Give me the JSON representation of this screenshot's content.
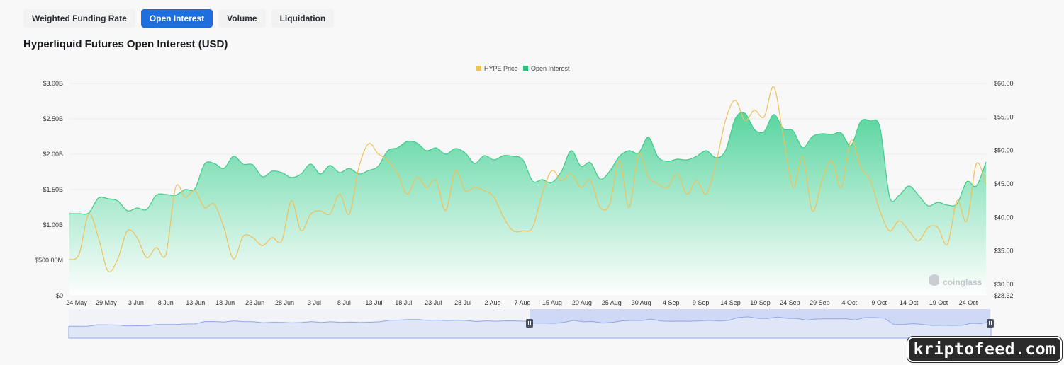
{
  "tabs": [
    {
      "label": "Weighted Funding Rate",
      "active": false
    },
    {
      "label": "Open Interest",
      "active": true
    },
    {
      "label": "Volume",
      "active": false
    },
    {
      "label": "Liquidation",
      "active": false
    }
  ],
  "chart_title": "Hyperliquid Futures Open Interest (USD)",
  "watermark": "coinglass",
  "badge": "kriptofeed.com",
  "colors": {
    "price_line": "#f0c05a",
    "oi_fill_top": "#5dd6a0",
    "oi_fill_bottom": "#ffffff",
    "oi_stroke": "#3fca89",
    "navigator_fill": "#c9d4f4",
    "navigator_line": "#8fa8e6",
    "tab_active": "#1d6fe0"
  },
  "chart_data": {
    "type": "area",
    "legend": [
      "HYPE Price",
      "Open Interest"
    ],
    "legend_position": "top-center",
    "grid": true,
    "x_tick_labels": [
      "24 May",
      "29 May",
      "3 Jun",
      "8 Jun",
      "13 Jun",
      "18 Jun",
      "23 Jun",
      "28 Jun",
      "3 Jul",
      "8 Jul",
      "13 Jul",
      "18 Jul",
      "23 Jul",
      "28 Jul",
      "2 Aug",
      "7 Aug",
      "15 Aug",
      "20 Aug",
      "25 Aug",
      "30 Aug",
      "4 Sep",
      "9 Sep",
      "14 Sep",
      "19 Sep",
      "24 Sep",
      "29 Sep",
      "4 Oct",
      "9 Oct",
      "14 Oct",
      "19 Oct",
      "24 Oct"
    ],
    "y_left": {
      "ticks": [
        "$0",
        "$500.00M",
        "$1.00B",
        "$1.50B",
        "$2.00B",
        "$2.50B",
        "$3.00B"
      ],
      "range_billions": [
        0,
        3.0
      ]
    },
    "y_right": {
      "ticks": [
        "$28.32",
        "$30.00",
        "$35.00",
        "$40.00",
        "$45.00",
        "$50.00",
        "$55.00",
        "$60.00"
      ],
      "range": [
        28.32,
        60.0
      ]
    },
    "series": [
      {
        "name": "Open Interest",
        "unit": "USD billions",
        "values": [
          1.16,
          1.16,
          1.17,
          1.38,
          1.37,
          1.34,
          1.2,
          1.24,
          1.22,
          1.42,
          1.43,
          1.42,
          1.5,
          1.51,
          1.86,
          1.87,
          1.8,
          1.97,
          1.86,
          1.85,
          1.68,
          1.76,
          1.74,
          1.67,
          1.72,
          1.86,
          1.72,
          1.84,
          1.74,
          1.8,
          1.72,
          1.77,
          1.83,
          2.05,
          2.09,
          2.18,
          2.16,
          2.05,
          2.09,
          2.0,
          2.08,
          2.02,
          1.87,
          1.98,
          1.92,
          1.98,
          1.97,
          1.92,
          1.62,
          1.64,
          1.6,
          1.76,
          2.05,
          1.83,
          1.88,
          1.65,
          1.76,
          1.97,
          2.05,
          2.02,
          2.24,
          1.96,
          1.9,
          1.93,
          1.92,
          1.97,
          2.05,
          1.95,
          2.05,
          2.5,
          2.58,
          2.35,
          2.32,
          2.56,
          2.36,
          2.33,
          2.09,
          2.25,
          2.29,
          2.28,
          2.3,
          2.12,
          2.46,
          2.47,
          2.38,
          1.4,
          1.42,
          1.55,
          1.42,
          1.27,
          1.32,
          1.28,
          1.3,
          1.61,
          1.55,
          1.89
        ]
      },
      {
        "name": "HYPE Price",
        "unit": "USD",
        "values": [
          33.7,
          34.5,
          40.5,
          37.0,
          32.0,
          33.8,
          38.0,
          37.0,
          34.0,
          35.5,
          34.5,
          44.5,
          43.0,
          44.0,
          41.5,
          42.0,
          38.5,
          33.8,
          37.2,
          37.0,
          35.8,
          37.0,
          36.5,
          42.5,
          38.0,
          40.5,
          41.0,
          40.5,
          43.5,
          40.5,
          47.5,
          51.0,
          49.5,
          48.5,
          46.5,
          43.5,
          46.0,
          44.5,
          45.5,
          41.0,
          47.0,
          44.0,
          44.5,
          44.0,
          43.0,
          40.0,
          38.0,
          38.0,
          38.5,
          43.5,
          47.0,
          45.5,
          46.5,
          44.5,
          45.5,
          41.5,
          42.0,
          48.5,
          41.5,
          49.5,
          46.0,
          45.0,
          44.5,
          46.5,
          43.5,
          45.5,
          43.5,
          48.0,
          54.5,
          57.5,
          54.5,
          56.0,
          55.0,
          59.5,
          52.0,
          44.5,
          49.0,
          41.0,
          45.5,
          48.5,
          44.5,
          51.5,
          47.5,
          45.5,
          41.0,
          38.0,
          39.5,
          38.0,
          36.5,
          38.5,
          38.5,
          36.0,
          42.5,
          39.5,
          48.0,
          45.0
        ]
      }
    ],
    "navigator_range_labels": [
      "7 Aug",
      "24 Oct"
    ]
  }
}
